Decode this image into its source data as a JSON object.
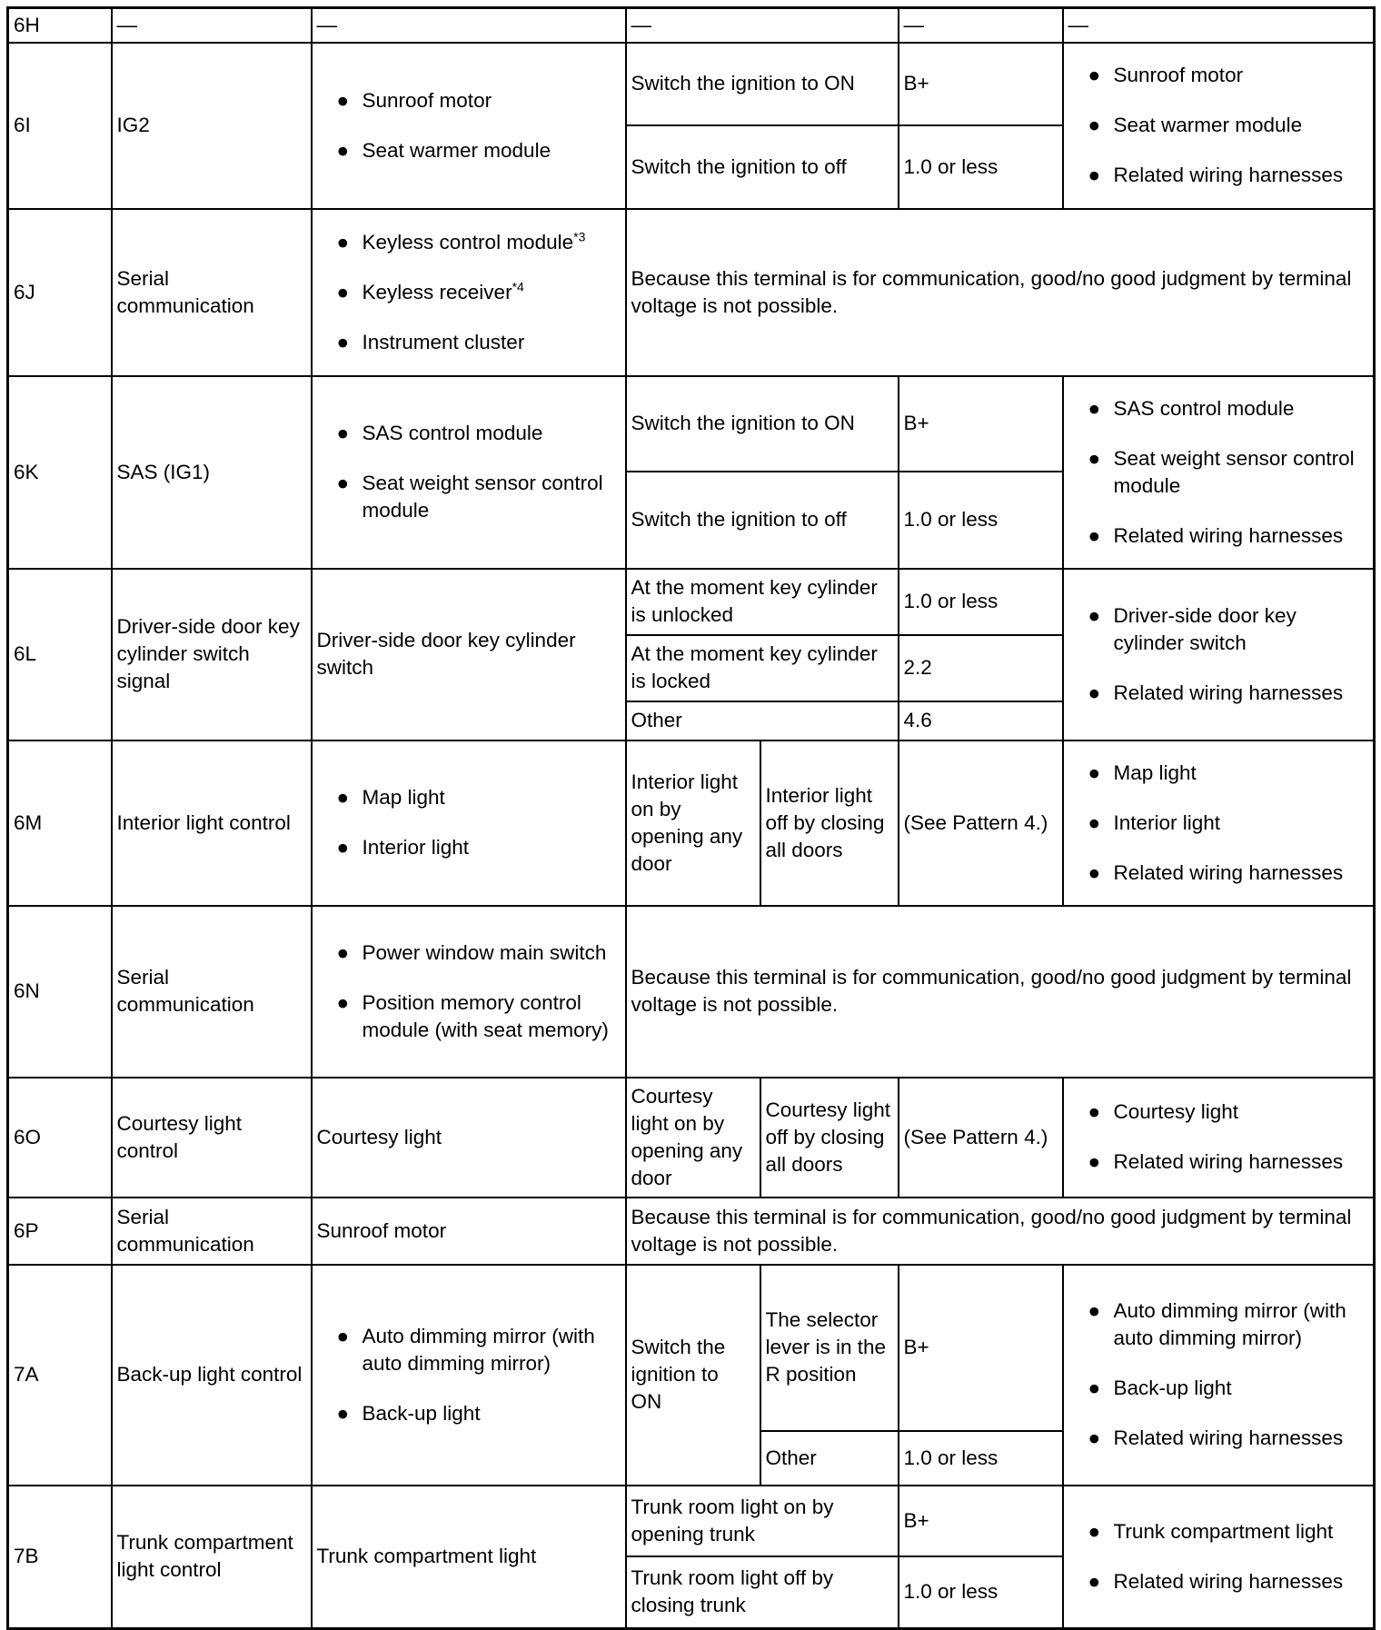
{
  "bullet_glyph": "●",
  "rows": [
    {
      "terminal": "6H",
      "signal": "—",
      "connected_text": "—",
      "type": "simple",
      "conds": [
        {
          "condition": "—",
          "voltage": "—"
        }
      ],
      "inspection_text": "—"
    },
    {
      "terminal": "6I",
      "signal": "IG2",
      "type": "simple",
      "connected": [
        {
          "text": "Sunroof motor"
        },
        {
          "text": "Seat warmer module"
        }
      ],
      "conds": [
        {
          "condition": "Switch the ignition to ON",
          "voltage": "B+"
        },
        {
          "condition": "Switch the ignition to off",
          "voltage": "1.0 or less"
        }
      ],
      "inspection": [
        {
          "text": "Sunroof motor"
        },
        {
          "text": "Seat warmer module"
        },
        {
          "text": "Related wiring harnesses"
        }
      ]
    },
    {
      "terminal": "6J",
      "signal": "Serial communication",
      "type": "message",
      "connected": [
        {
          "text": "Keyless control module",
          "sup": "*3"
        },
        {
          "text": "Keyless receiver",
          "sup": "*4"
        },
        {
          "text": "Instrument cluster"
        }
      ],
      "message": "Because this terminal is for communication, good/no good judgment by terminal voltage is not possible."
    },
    {
      "terminal": "6K",
      "signal": "SAS (IG1)",
      "type": "simple",
      "connected": [
        {
          "text": "SAS control module"
        },
        {
          "text": "Seat weight sensor control module"
        }
      ],
      "conds": [
        {
          "condition": "Switch the ignition to ON",
          "voltage": "B+"
        },
        {
          "condition": "Switch the ignition to off",
          "voltage": "1.0 or less"
        }
      ],
      "inspection": [
        {
          "text": "SAS control module"
        },
        {
          "text": "Seat weight sensor control module"
        },
        {
          "text": "Related wiring harnesses"
        }
      ]
    },
    {
      "terminal": "6L",
      "signal": "Driver-side door key cylinder switch signal",
      "type": "simple",
      "connected_text": "Driver-side door key cylinder switch",
      "conds": [
        {
          "condition": "At the moment key cylinder is unlocked",
          "voltage": "1.0 or less"
        },
        {
          "condition": "At the moment key cylinder is locked",
          "voltage": "2.2"
        },
        {
          "condition": "Other",
          "voltage": "4.6"
        }
      ],
      "inspection": [
        {
          "text": "Driver-side door key cylinder switch"
        },
        {
          "text": "Related wiring harnesses"
        }
      ]
    },
    {
      "terminal": "6M",
      "signal": "Interior light control",
      "type": "split",
      "connected": [
        {
          "text": "Map light"
        },
        {
          "text": "Interior light"
        }
      ],
      "cond_a": "Interior light on by opening any door",
      "cond_b": "Interior light off by closing all doors",
      "voltage": "(See Pattern 4.)",
      "inspection": [
        {
          "text": "Map light"
        },
        {
          "text": "Interior light"
        },
        {
          "text": "Related wiring harnesses"
        }
      ]
    },
    {
      "terminal": "6N",
      "signal": "Serial communication",
      "type": "message",
      "connected": [
        {
          "text": "Power window main switch"
        },
        {
          "text": "Position memory control module (with seat memory)"
        }
      ],
      "message": "Because this terminal is for communication, good/no good judgment by terminal voltage is not possible."
    },
    {
      "terminal": "6O",
      "signal": "Courtesy light control",
      "type": "split",
      "connected_text": "Courtesy light",
      "cond_a": "Courtesy light on by opening any door",
      "cond_b": "Courtesy light off by closing all doors",
      "voltage": "(See Pattern 4.)",
      "inspection": [
        {
          "text": "Courtesy light"
        },
        {
          "text": "Related wiring harnesses"
        }
      ]
    },
    {
      "terminal": "6P",
      "signal": "Serial communication",
      "type": "message",
      "connected_text": "Sunroof motor",
      "message": "Because this terminal is for communication, good/no good judgment by terminal voltage is not possible."
    },
    {
      "terminal": "7A",
      "signal": "Back-up light control",
      "type": "nested",
      "connected": [
        {
          "text": "Auto dimming mirror (with auto dimming mirror)"
        },
        {
          "text": "Back-up light"
        }
      ],
      "outer_condition": "Switch the ignition to ON",
      "conds": [
        {
          "condition": "The selector lever is in the R position",
          "voltage": "B+"
        },
        {
          "condition": "Other",
          "voltage": "1.0 or less"
        }
      ],
      "inspection": [
        {
          "text": "Auto dimming mirror (with auto dimming mirror)"
        },
        {
          "text": "Back-up light"
        },
        {
          "text": "Related wiring harnesses"
        }
      ]
    },
    {
      "terminal": "7B",
      "signal": "Trunk compartment light control",
      "type": "simple",
      "connected_text": "Trunk compartment light",
      "conds": [
        {
          "condition": "Trunk room light on by opening trunk",
          "voltage": "B+"
        },
        {
          "condition": "Trunk room light off by closing trunk",
          "voltage": "1.0 or less"
        }
      ],
      "inspection": [
        {
          "text": "Trunk compartment light"
        },
        {
          "text": "Related wiring harnesses"
        }
      ]
    }
  ]
}
